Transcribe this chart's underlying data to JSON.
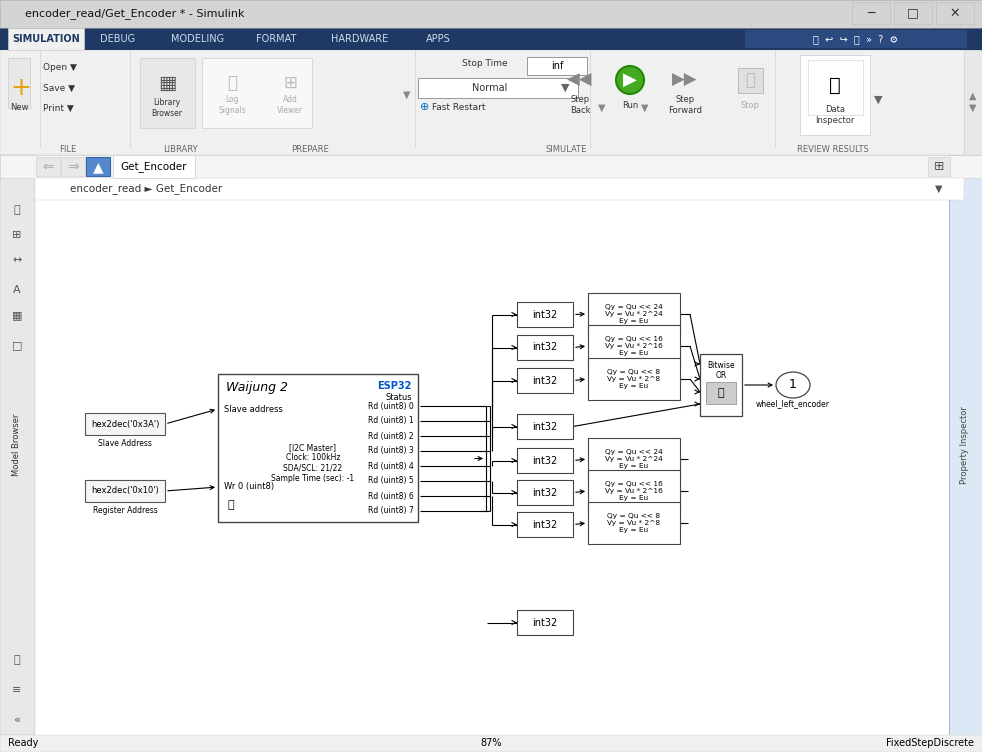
{
  "window_title": "encoder_read/Get_Encoder * - Simulink",
  "tab_text": "Get_Encoder",
  "toolbar_tabs": [
    "SIMULATION",
    "DEBUG",
    "MODELING",
    "FORMAT",
    "HARDWARE",
    "APPS"
  ],
  "breadcrumb": "encoder_read ► Get_Encoder",
  "status_left": "Ready",
  "status_center": "87%",
  "status_right": "FixedStepDiscrete",
  "hex_slave_text": "hex2dec('0x3A')",
  "hex_slave_cap": "Slave Address",
  "hex_reg_text": "hex2dec('0x10')",
  "hex_reg_cap": "Register Address",
  "waijung_name": "Waijung 2",
  "waijung_esp": "ESP32",
  "waijung_status_lbl": "Status",
  "waijung_slave_port": "Slave address",
  "waijung_wr_port": "Wr 0 (uint8)",
  "waijung_info": "[I2C Master]\nClock: 100kHz\nSDA/SCL: 21/22\nSample Time (sec): -1",
  "rd_ports": [
    "Rd (uint8) 0",
    "Rd (uint8) 1",
    "Rd (uint8) 2",
    "Rd (uint8) 3",
    "Rd (uint8) 4",
    "Rd (uint8) 5",
    "Rd (uint8) 6",
    "Rd (uint8) 7"
  ],
  "shift_top": [
    "Qy = Qu << 24\nVy = Vu * 2^24\nEy = Eu",
    "Qy = Qu << 16\nVy = Vu * 2^16\nEy = Eu",
    "Qy = Qu << 8\nVy = Vu * 2^8\nEy = Eu"
  ],
  "shift_bot": [
    "Qy = Qu << 24\nVy = Vu * 2^24\nEy = Eu",
    "Qy = Qu << 16\nVy = Vu * 2^16\nEy = Eu",
    "Qy = Qu << 8\nVy = Vu * 2^8\nEy = Eu"
  ],
  "output_text": "wheel_left_encoder",
  "output_num": "1",
  "col_titlebar": "#d4d0c8",
  "col_ribbon_tab": "#1f3864",
  "col_ribbon_body": "#f0f0f0",
  "col_canvas": "#ffffff",
  "col_sidebar": "#e8e8e8"
}
